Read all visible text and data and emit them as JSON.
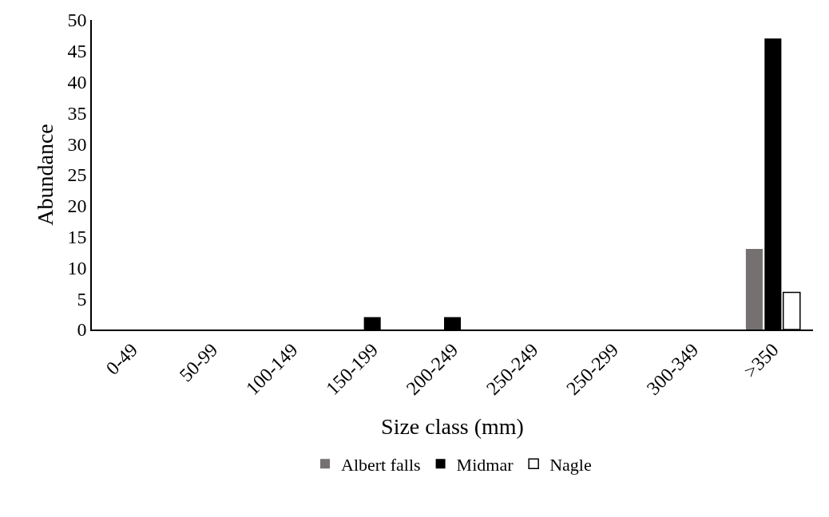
{
  "chart_data": {
    "type": "bar",
    "xlabel": "Size class (mm)",
    "ylabel": "Abundance",
    "categories": [
      "0-49",
      "50-99",
      "100-149",
      "150-199",
      "200-249",
      "250-249",
      "250-299",
      "300-349",
      ">350"
    ],
    "series": [
      {
        "name": "Albert falls",
        "color": "#767171",
        "values": [
          0,
          0,
          0,
          0,
          0,
          0,
          0,
          0,
          13
        ]
      },
      {
        "name": "Midmar",
        "color": "#000000",
        "values": [
          0,
          0,
          0,
          2,
          2,
          0,
          0,
          0,
          47
        ]
      },
      {
        "name": "Nagle",
        "color": "#ffffff",
        "values": [
          0,
          0,
          0,
          0,
          0,
          0,
          0,
          0,
          6
        ]
      }
    ],
    "ylim": [
      0,
      50
    ],
    "yticks": [
      0,
      5,
      10,
      15,
      20,
      25,
      30,
      35,
      40,
      45,
      50
    ],
    "grid": false,
    "legend": "bottom"
  }
}
